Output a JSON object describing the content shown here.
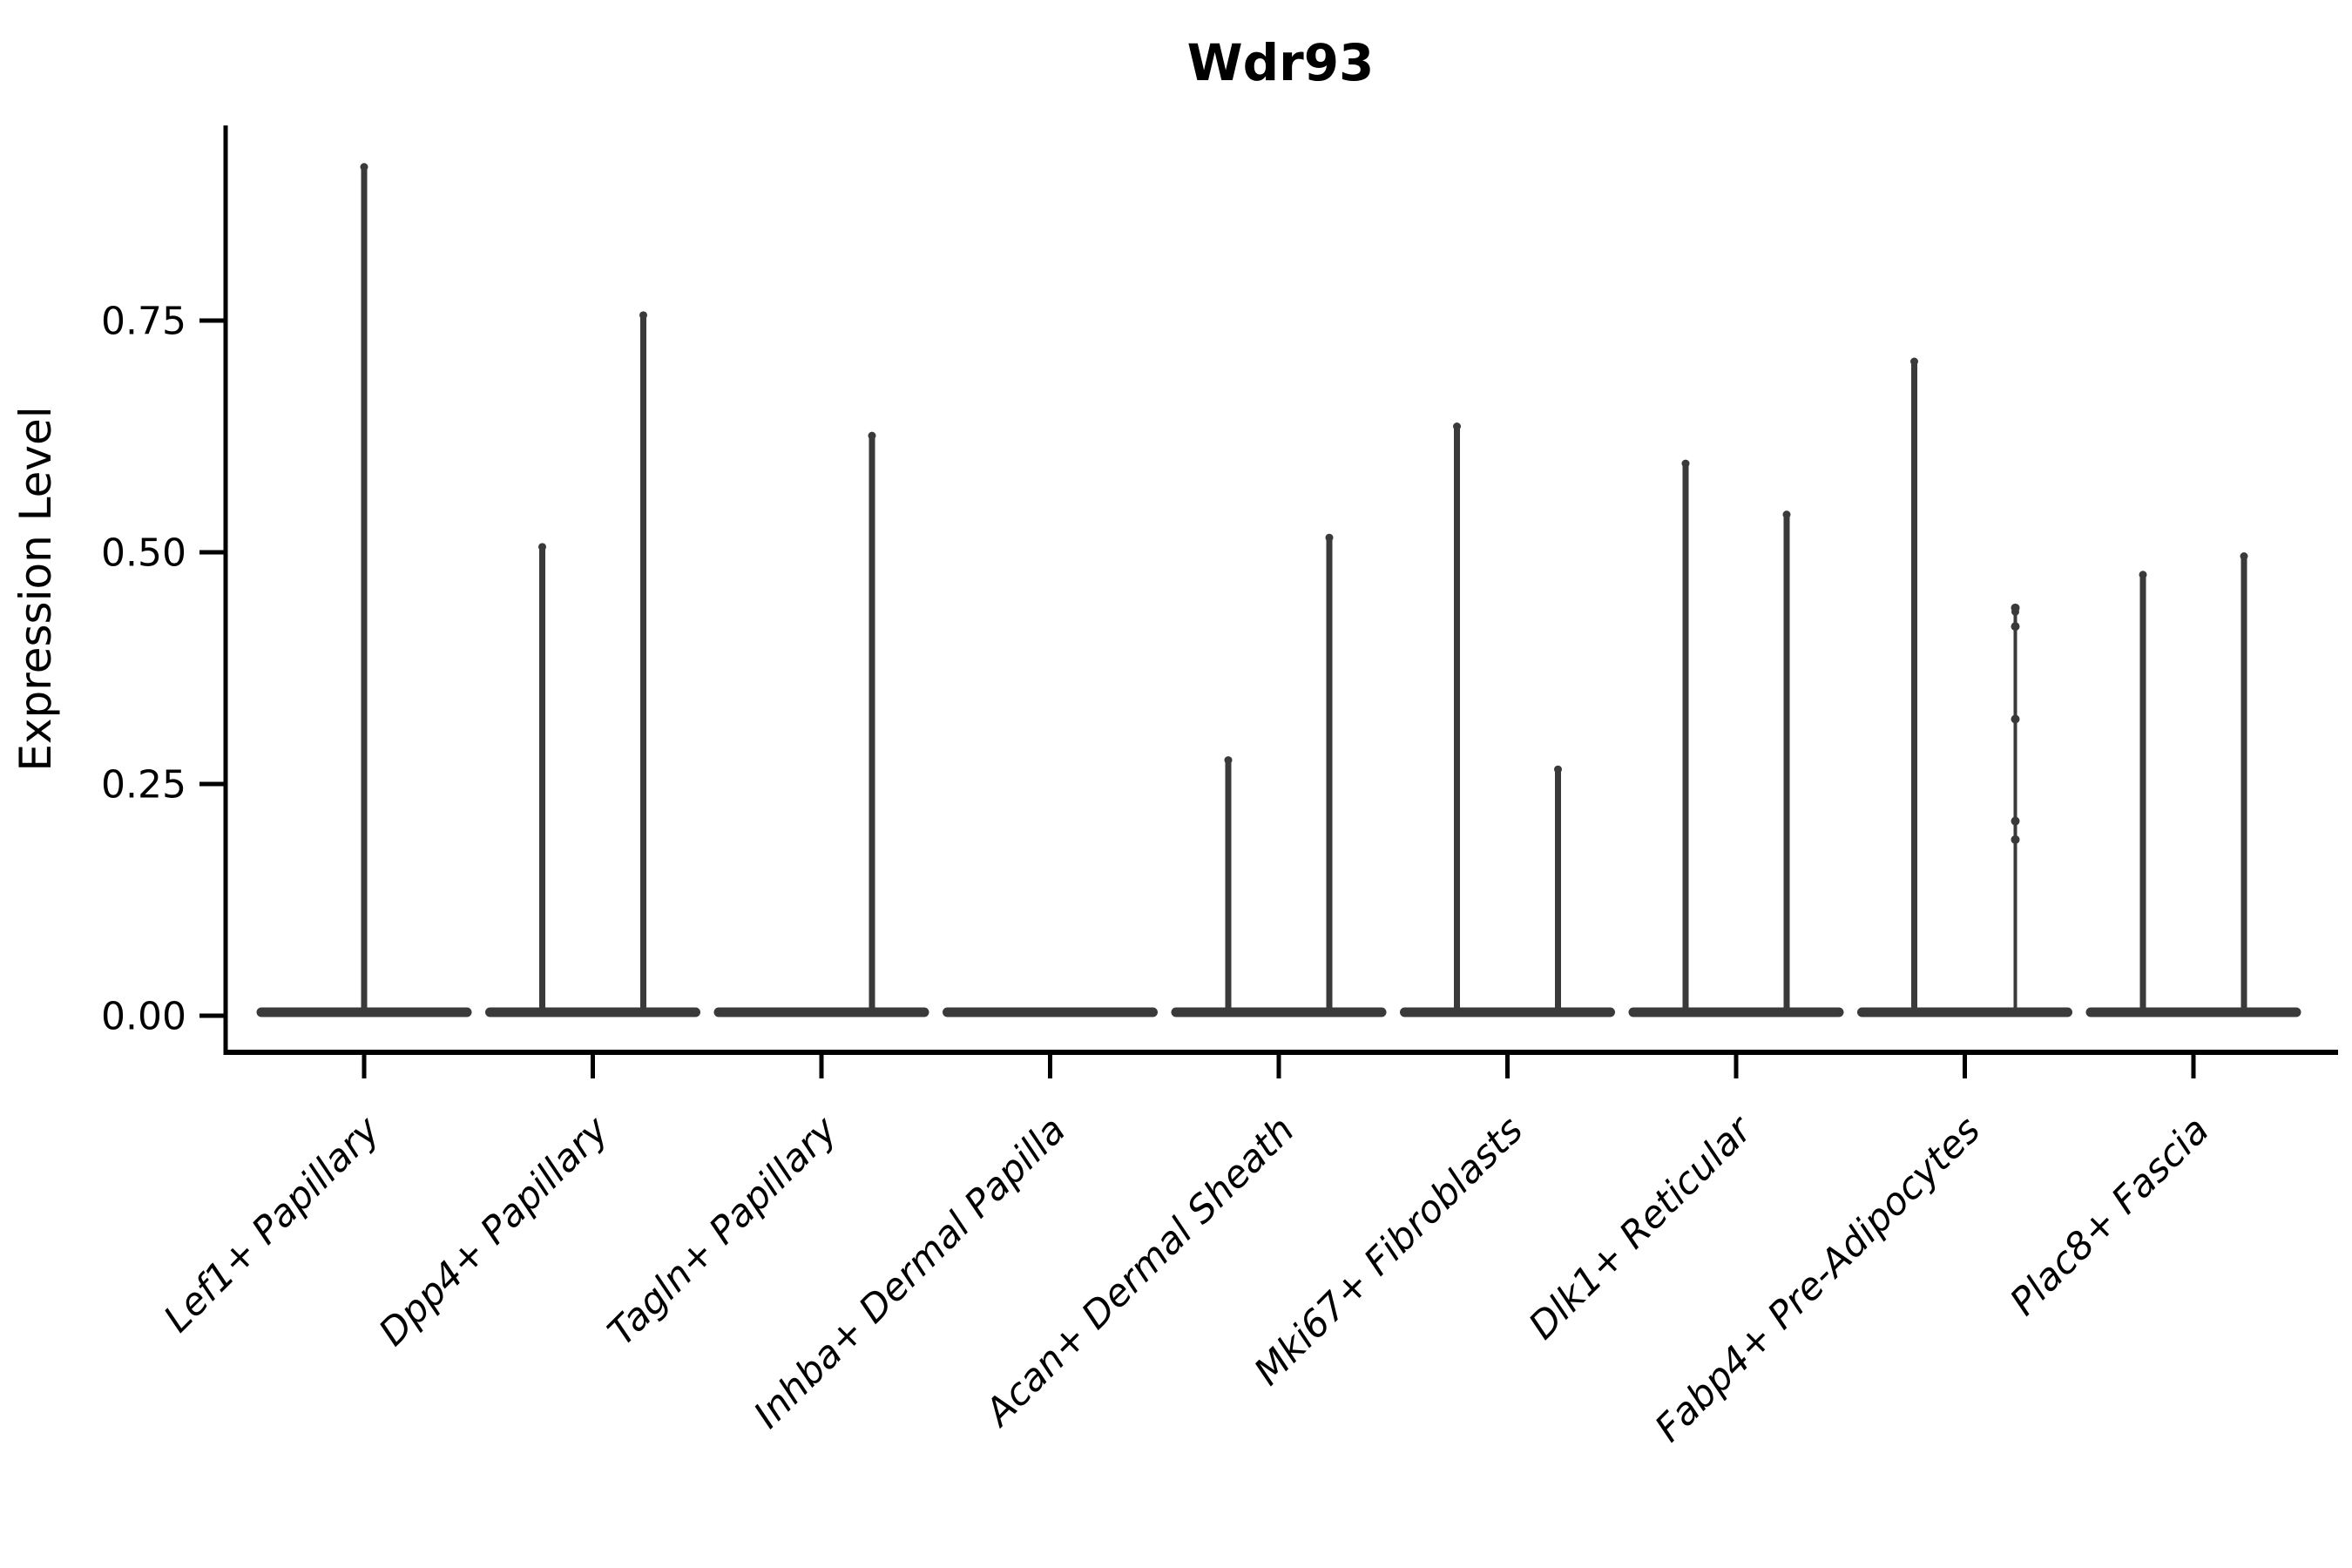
{
  "chart_data": {
    "type": "violin",
    "title": "Wdr93",
    "ylabel": "Expression Level",
    "xlabel": "",
    "ylim": [
      0,
      0.96
    ],
    "yticks": [
      0,
      0.25,
      0.5,
      0.75
    ],
    "ytick_labels": [
      "0.00",
      "0.25",
      "0.50",
      "0.75"
    ],
    "grid": false,
    "legend": false,
    "categories": [
      "Lef1+ Papillary",
      "Dpp4+ Papillary",
      "Tagln+ Papillary",
      "Inhba+ Dermal Papilla",
      "Acan+ Dermal Sheath",
      "Mki67+ Fibroblasts",
      "Dlk1+ Reticular",
      "Fabp4+ Pre-Adipocytes",
      "Plac8+ Fascia"
    ],
    "violins": [
      {
        "category": "Lef1+ Papillary",
        "spikes": [
          {
            "pos": "center",
            "max": 0.92
          }
        ]
      },
      {
        "category": "Dpp4+ Papillary",
        "spikes": [
          {
            "pos": "left",
            "max": 0.51
          },
          {
            "pos": "right",
            "max": 0.76
          }
        ]
      },
      {
        "category": "Tagln+ Papillary",
        "spikes": [
          {
            "pos": "right",
            "max": 0.63
          }
        ]
      },
      {
        "category": "Inhba+ Dermal Papilla",
        "spikes": []
      },
      {
        "category": "Acan+ Dermal Sheath",
        "spikes": [
          {
            "pos": "left",
            "max": 0.28
          },
          {
            "pos": "right",
            "max": 0.52
          }
        ]
      },
      {
        "category": "Mki67+ Fibroblasts",
        "spikes": [
          {
            "pos": "left",
            "max": 0.64
          },
          {
            "pos": "right",
            "max": 0.27
          }
        ]
      },
      {
        "category": "Dlk1+ Reticular",
        "spikes": [
          {
            "pos": "left",
            "max": 0.6
          },
          {
            "pos": "right",
            "max": 0.545
          }
        ]
      },
      {
        "category": "Fabp4+ Pre-Adipocytes",
        "spikes": [
          {
            "pos": "left",
            "max": 0.71
          },
          {
            "pos": "right",
            "max": 0.44,
            "thin": true,
            "points": [
              0.44,
              0.42,
              0.32,
              0.21,
              0.19
            ]
          }
        ]
      },
      {
        "category": "Plac8+ Fascia",
        "spikes": [
          {
            "pos": "left",
            "max": 0.48
          },
          {
            "pos": "right",
            "max": 0.5
          }
        ]
      }
    ],
    "colors": {
      "violin": "#3a3a3a",
      "axis": "#000000",
      "text": "#000000",
      "background": "#ffffff"
    }
  }
}
